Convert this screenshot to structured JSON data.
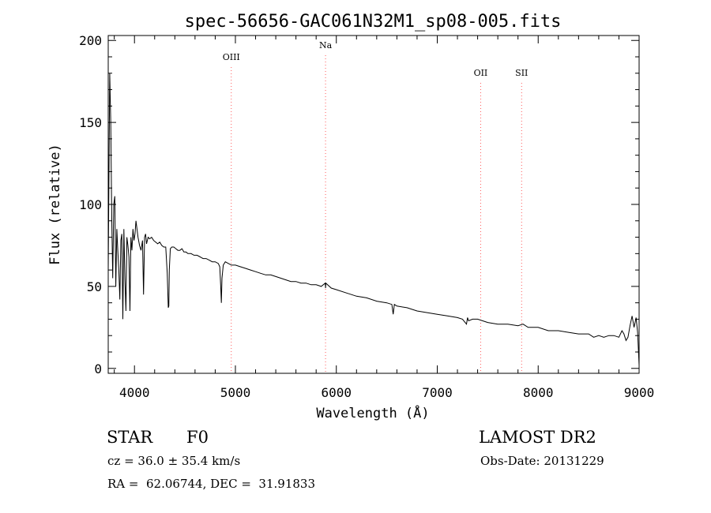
{
  "chart_data": {
    "type": "line",
    "title": "spec-56656-GAC061N32M1_sp08-005.fits",
    "xlabel": "Wavelength (Å)",
    "ylabel": "Flux (relative)",
    "xlim": [
      3740,
      9000
    ],
    "ylim": [
      -3,
      203
    ],
    "xticks": [
      4000,
      5000,
      6000,
      7000,
      8000,
      9000
    ],
    "yticks": [
      0,
      50,
      100,
      150,
      200
    ],
    "grid": false,
    "line_color": "#000000",
    "marker_color": "#ff5a5a",
    "lines": [
      {
        "label": "OIII",
        "x": 4959
      },
      {
        "label": "Na",
        "x": 5893
      },
      {
        "label": "OII",
        "x": 7430
      },
      {
        "label": "SII",
        "x": 7836
      }
    ],
    "series": [
      {
        "x": [
          3740,
          3755,
          3765,
          3775,
          3785,
          3795,
          3805,
          3815,
          3825,
          3835,
          3845,
          3855,
          3865,
          3875,
          3885,
          3895,
          3905,
          3915,
          3925,
          3935,
          3945,
          3955,
          3965,
          3975,
          3985,
          3995,
          4005,
          4015,
          4025,
          4035,
          4050,
          4065,
          4080,
          4090,
          4100,
          4110,
          4120,
          4135,
          4150,
          4170,
          4190,
          4210,
          4230,
          4250,
          4270,
          4290,
          4310,
          4325,
          4335,
          4340,
          4345,
          4355,
          4370,
          4390,
          4410,
          4430,
          4450,
          4470,
          4490,
          4510,
          4530,
          4560,
          4590,
          4620,
          4650,
          4680,
          4710,
          4740,
          4770,
          4800,
          4830,
          4845,
          4855,
          4861,
          4867,
          4880,
          4900,
          4930,
          4960,
          5000,
          5050,
          5100,
          5150,
          5200,
          5250,
          5300,
          5350,
          5400,
          5450,
          5500,
          5550,
          5600,
          5650,
          5700,
          5750,
          5800,
          5850,
          5890,
          5893,
          5896,
          5950,
          6000,
          6100,
          6200,
          6300,
          6400,
          6500,
          6550,
          6563,
          6575,
          6600,
          6700,
          6800,
          6900,
          7000,
          7100,
          7200,
          7250,
          7290,
          7300,
          7310,
          7350,
          7400,
          7500,
          7600,
          7700,
          7800,
          7850,
          7900,
          8000,
          8100,
          8200,
          8300,
          8400,
          8500,
          8550,
          8600,
          8650,
          8700,
          8750,
          8800,
          8830,
          8850,
          8870,
          8890,
          8910,
          8930,
          8950,
          8970,
          8985,
          9000
        ],
        "values": [
          60,
          180,
          150,
          90,
          55,
          100,
          105,
          50,
          85,
          72,
          60,
          42,
          78,
          82,
          30,
          85,
          55,
          35,
          80,
          75,
          68,
          35,
          80,
          72,
          85,
          78,
          82,
          90,
          85,
          80,
          75,
          72,
          78,
          45,
          80,
          82,
          76,
          80,
          79,
          80,
          78,
          77,
          76,
          77,
          75,
          74,
          74,
          58,
          37,
          38,
          60,
          73,
          74,
          74,
          73,
          72,
          72,
          73,
          71,
          71,
          70,
          70,
          69,
          69,
          68,
          67,
          67,
          66,
          65,
          65,
          64,
          62,
          50,
          40,
          55,
          63,
          65,
          64,
          63,
          63,
          62,
          61,
          60,
          59,
          58,
          57,
          57,
          56,
          55,
          54,
          53,
          53,
          52,
          52,
          51,
          51,
          50,
          52,
          49,
          52,
          49,
          48,
          46,
          44,
          43,
          41,
          40,
          39,
          33,
          39,
          38,
          37,
          35,
          34,
          33,
          32,
          31,
          30,
          27,
          31,
          29,
          30,
          30,
          28,
          27,
          27,
          26,
          27,
          25,
          25,
          23,
          23,
          22,
          21,
          21,
          19,
          20,
          19,
          20,
          20,
          19,
          23,
          21,
          17,
          19,
          26,
          32,
          25,
          31,
          22,
          2
        ]
      }
    ]
  },
  "info": {
    "object_type": "STAR",
    "subclass": "F0",
    "survey": "LAMOST DR2",
    "cz": "cz = 36.0 ± 35.4 km/s",
    "obs_date": "Obs-Date: 20131229",
    "radec": "RA =  62.06744, DEC =  31.91833"
  }
}
